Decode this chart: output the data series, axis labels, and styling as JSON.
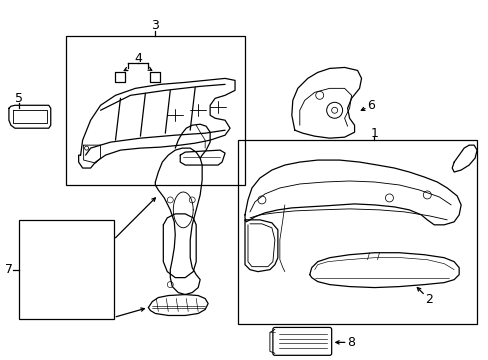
{
  "bg_color": "#ffffff",
  "line_color": "#000000",
  "lw": 0.9,
  "fig_width": 4.89,
  "fig_height": 3.6,
  "dpi": 100
}
